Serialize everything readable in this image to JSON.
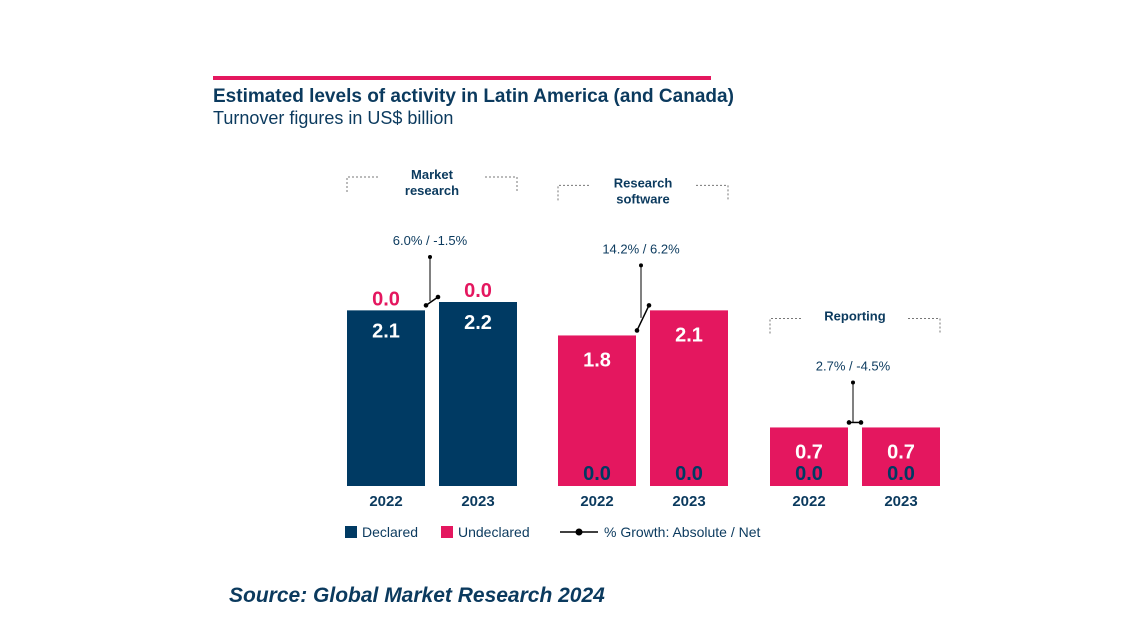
{
  "header": {
    "title": "Estimated levels of activity in Latin America (and Canada)",
    "subtitle": "Turnover figures in US$ billion"
  },
  "source": "Source: Global Market Research 2024",
  "legend": {
    "declared": "Declared",
    "undeclared": "Undeclared",
    "growth": "% Growth: Absolute / Net"
  },
  "colors": {
    "declared": "#003a63",
    "undeclared": "#e4175f",
    "accent_rule": "#e4175f",
    "text": "#0b3a5e"
  },
  "chart_data": {
    "type": "bar",
    "stacked": true,
    "ylim": [
      0,
      2.2
    ],
    "series": [
      {
        "name": "Declared",
        "key": "declared"
      },
      {
        "name": "Undeclared",
        "key": "undeclared"
      }
    ],
    "groups": [
      {
        "name_lines": [
          "Market",
          "research"
        ],
        "growth": "6.0% / -1.5%",
        "bars": [
          {
            "year": "2022",
            "declared": 2.1,
            "undeclared": 0.0,
            "declared_label": "2.1",
            "undeclared_label": "0.0"
          },
          {
            "year": "2023",
            "declared": 2.2,
            "undeclared": 0.0,
            "declared_label": "2.2",
            "undeclared_label": "0.0"
          }
        ]
      },
      {
        "name_lines": [
          "Research",
          "software"
        ],
        "growth": "14.2% / 6.2%",
        "bars": [
          {
            "year": "2022",
            "declared": 0.0,
            "undeclared": 1.8,
            "declared_label": "0.0",
            "undeclared_label": "1.8"
          },
          {
            "year": "2023",
            "declared": 0.0,
            "undeclared": 2.1,
            "declared_label": "0.0",
            "undeclared_label": "2.1"
          }
        ]
      },
      {
        "name_lines": [
          "Reporting"
        ],
        "growth": "2.7% / -4.5%",
        "bars": [
          {
            "year": "2022",
            "declared": 0.0,
            "undeclared": 0.7,
            "declared_label": "0.0",
            "undeclared_label": "0.7"
          },
          {
            "year": "2023",
            "declared": 0.0,
            "undeclared": 0.7,
            "declared_label": "0.0",
            "undeclared_label": "0.7"
          }
        ]
      }
    ]
  }
}
